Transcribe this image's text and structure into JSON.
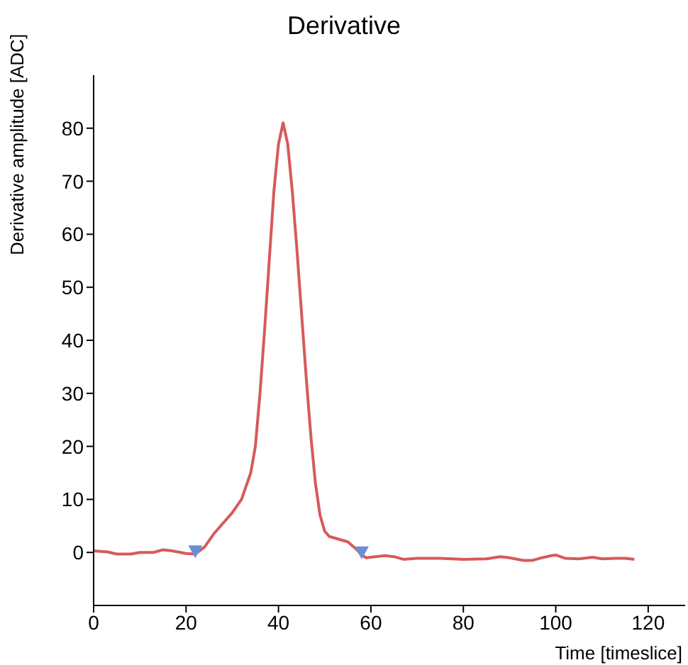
{
  "chart_data": {
    "type": "line",
    "title": "Derivative",
    "xlabel": "Time [timeslice]",
    "ylabel": "Derivative amplitude [ADC]",
    "xlim": [
      0,
      128
    ],
    "xticks": [
      0,
      20,
      40,
      60,
      80,
      100,
      120
    ],
    "ylim": [
      -10,
      90
    ],
    "yticks": [
      0,
      10,
      20,
      30,
      40,
      50,
      60,
      70,
      80
    ],
    "grid": false,
    "series": [
      {
        "color": "#d65a5a",
        "marker": "none",
        "line_style": "solid",
        "x": [
          0,
          3,
          5,
          8,
          10,
          13,
          15,
          17,
          20,
          22,
          24,
          26,
          28,
          30,
          32,
          34,
          35,
          36,
          37,
          38,
          39,
          40,
          41,
          42,
          43,
          44,
          45,
          46,
          47,
          48,
          49,
          50,
          51,
          53,
          55,
          57,
          58,
          59,
          61,
          63,
          65,
          67,
          70,
          75,
          80,
          85,
          88,
          90,
          93,
          95,
          97,
          99,
          100,
          102,
          105,
          108,
          110,
          113,
          115,
          117
        ],
        "values": [
          0.3,
          0.1,
          -0.3,
          -0.3,
          0,
          0,
          0.5,
          0.3,
          -0.2,
          -0.3,
          1,
          3.5,
          5.5,
          7.5,
          10,
          15,
          20,
          30,
          42,
          55,
          68,
          77,
          81,
          77,
          68,
          57,
          45,
          33,
          22,
          13,
          7,
          4,
          3,
          2.5,
          2,
          0.5,
          -0.5,
          -1,
          -0.8,
          -0.6,
          -0.8,
          -1.3,
          -1.1,
          -1.1,
          -1.3,
          -1.2,
          -0.8,
          -1,
          -1.5,
          -1.5,
          -1,
          -0.6,
          -0.5,
          -1.1,
          -1.2,
          -0.9,
          -1.2,
          -1.1,
          -1.1,
          -1.3
        ]
      },
      {
        "type": "scatter",
        "color": "#6a8ed8",
        "marker": "triangle",
        "x": [
          22,
          58
        ],
        "values": [
          0,
          -0.2
        ]
      }
    ]
  }
}
